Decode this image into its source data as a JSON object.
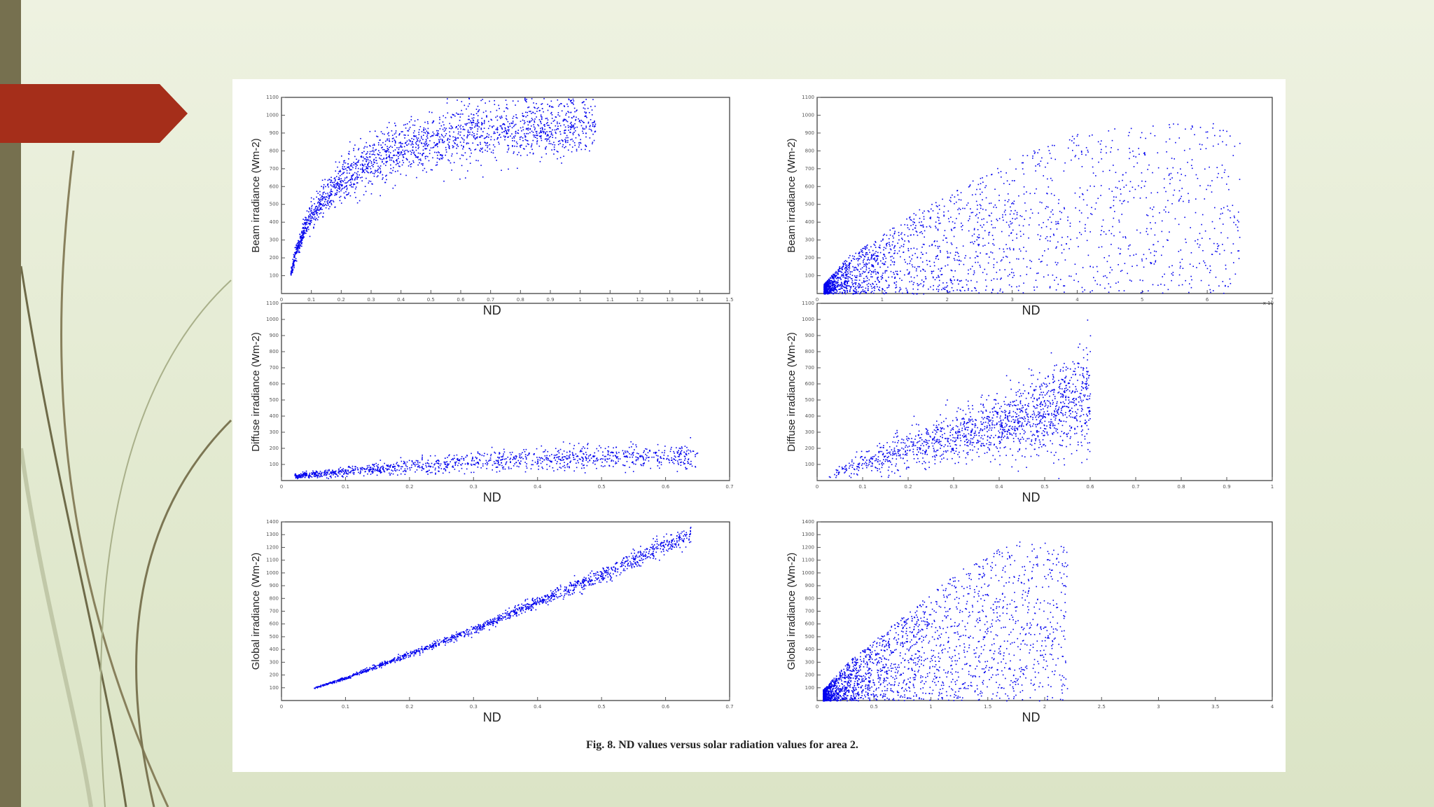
{
  "figure": {
    "caption": "Fig. 8.  ND values versus solar radiation values for area 2."
  },
  "colors": {
    "points": "#0000ee",
    "accent_bar": "#76704f",
    "arrow": "#a52e1a"
  },
  "chart_data": [
    {
      "id": "beam-left",
      "type": "scatter",
      "xlabel": "ND",
      "ylabel": "Beam irradiance (Wm-2)",
      "xlim": [
        0,
        1.5
      ],
      "ylim": [
        0,
        1100
      ],
      "xticks": [
        "0",
        "0.1",
        "0.2",
        "0.3",
        "0.4",
        "0.5",
        "0.6",
        "0.7",
        "0.8",
        "0.9",
        "1",
        "1.1",
        "1.2",
        "1.3",
        "1.4",
        "1.5"
      ],
      "yticks": [
        "100",
        "200",
        "300",
        "400",
        "500",
        "600",
        "700",
        "800",
        "900",
        "1000",
        "1100"
      ],
      "shape": "saturating",
      "points": [
        [
          0.03,
          120
        ],
        [
          0.05,
          250
        ],
        [
          0.08,
          380
        ],
        [
          0.1,
          450
        ],
        [
          0.15,
          550
        ],
        [
          0.2,
          650
        ],
        [
          0.3,
          740
        ],
        [
          0.4,
          810
        ],
        [
          0.5,
          860
        ],
        [
          0.6,
          900
        ],
        [
          0.7,
          920
        ],
        [
          0.8,
          930
        ],
        [
          0.9,
          940
        ],
        [
          1.0,
          950
        ],
        [
          1.05,
          955
        ]
      ]
    },
    {
      "id": "beam-right",
      "type": "scatter",
      "xlabel": "ND",
      "ylabel": "Beam irradiance (Wm-2)",
      "xlim": [
        0,
        7
      ],
      "ylim": [
        0,
        1100
      ],
      "xticks": [
        "0",
        "1",
        "2",
        "3",
        "4",
        "5",
        "6",
        "7"
      ],
      "yticks": [
        "100",
        "200",
        "300",
        "400",
        "500",
        "600",
        "700",
        "800",
        "900",
        "1000",
        "1100"
      ],
      "sci_note": "x 10",
      "shape": "cloud",
      "points": [
        [
          0.1,
          50
        ],
        [
          0.5,
          200
        ],
        [
          1,
          300
        ],
        [
          1.5,
          420
        ],
        [
          2,
          500
        ],
        [
          2.5,
          600
        ],
        [
          3,
          700
        ],
        [
          3.5,
          750
        ],
        [
          4,
          820
        ],
        [
          5,
          860
        ],
        [
          6,
          880
        ],
        [
          6.5,
          870
        ]
      ]
    },
    {
      "id": "diffuse-left",
      "type": "scatter",
      "xlabel": "ND",
      "ylabel": "Diffuse irradiance (Wm-2)",
      "xlim": [
        0,
        0.7
      ],
      "ylim": [
        0,
        1100
      ],
      "xticks": [
        "0",
        "0.1",
        "0.2",
        "0.3",
        "0.4",
        "0.5",
        "0.6",
        "0.7"
      ],
      "yticks": [
        "100",
        "200",
        "300",
        "400",
        "500",
        "600",
        "700",
        "800",
        "900",
        "1000",
        "1100"
      ],
      "shape": "flat-band",
      "points": [
        [
          0.02,
          30
        ],
        [
          0.1,
          60
        ],
        [
          0.2,
          90
        ],
        [
          0.3,
          120
        ],
        [
          0.4,
          140
        ],
        [
          0.5,
          150
        ],
        [
          0.6,
          155
        ],
        [
          0.65,
          155
        ]
      ]
    },
    {
      "id": "diffuse-right",
      "type": "scatter",
      "xlabel": "ND",
      "ylabel": "Diffuse irradiance (Wm-2)",
      "xlim": [
        0,
        1
      ],
      "ylim": [
        0,
        1100
      ],
      "xticks": [
        "0",
        "0.1",
        "0.2",
        "0.3",
        "0.4",
        "0.5",
        "0.6",
        "0.7",
        "0.8",
        "0.9",
        "1"
      ],
      "yticks": [
        "100",
        "200",
        "300",
        "400",
        "500",
        "600",
        "700",
        "800",
        "900",
        "1000",
        "1100"
      ],
      "shape": "rising-cloud",
      "points": [
        [
          0.02,
          20
        ],
        [
          0.1,
          120
        ],
        [
          0.2,
          200
        ],
        [
          0.3,
          280
        ],
        [
          0.4,
          350
        ],
        [
          0.5,
          420
        ],
        [
          0.55,
          480
        ],
        [
          0.6,
          520
        ]
      ]
    },
    {
      "id": "global-left",
      "type": "scatter",
      "xlabel": "ND",
      "ylabel": "Global irradiance (Wm-2)",
      "xlim": [
        0,
        0.7
      ],
      "ylim": [
        0,
        1400
      ],
      "xticks": [
        "0",
        "0.1",
        "0.2",
        "0.3",
        "0.4",
        "0.5",
        "0.6",
        "0.7"
      ],
      "yticks": [
        "100",
        "200",
        "300",
        "400",
        "500",
        "600",
        "700",
        "800",
        "900",
        "1000",
        "1100",
        "1200",
        "1300",
        "1400"
      ],
      "shape": "linear",
      "points": [
        [
          0.05,
          100
        ],
        [
          0.1,
          180
        ],
        [
          0.2,
          370
        ],
        [
          0.3,
          560
        ],
        [
          0.4,
          780
        ],
        [
          0.5,
          990
        ],
        [
          0.6,
          1230
        ],
        [
          0.64,
          1310
        ]
      ]
    },
    {
      "id": "global-right",
      "type": "scatter",
      "xlabel": "ND",
      "ylabel": "Global irradiance (Wm-2)",
      "xlim": [
        0,
        4
      ],
      "ylim": [
        0,
        1400
      ],
      "xticks": [
        "0",
        "0.5",
        "1",
        "1.5",
        "2",
        "2.5",
        "3",
        "3.5",
        "4"
      ],
      "yticks": [
        "100",
        "200",
        "300",
        "400",
        "500",
        "600",
        "700",
        "800",
        "900",
        "1000",
        "1100",
        "1200",
        "1300",
        "1400"
      ],
      "shape": "spreading-cloud",
      "points": [
        [
          0.05,
          80
        ],
        [
          0.3,
          300
        ],
        [
          0.6,
          500
        ],
        [
          0.9,
          700
        ],
        [
          1.2,
          900
        ],
        [
          1.5,
          1050
        ],
        [
          1.8,
          1150
        ],
        [
          2.2,
          1100
        ]
      ]
    }
  ]
}
